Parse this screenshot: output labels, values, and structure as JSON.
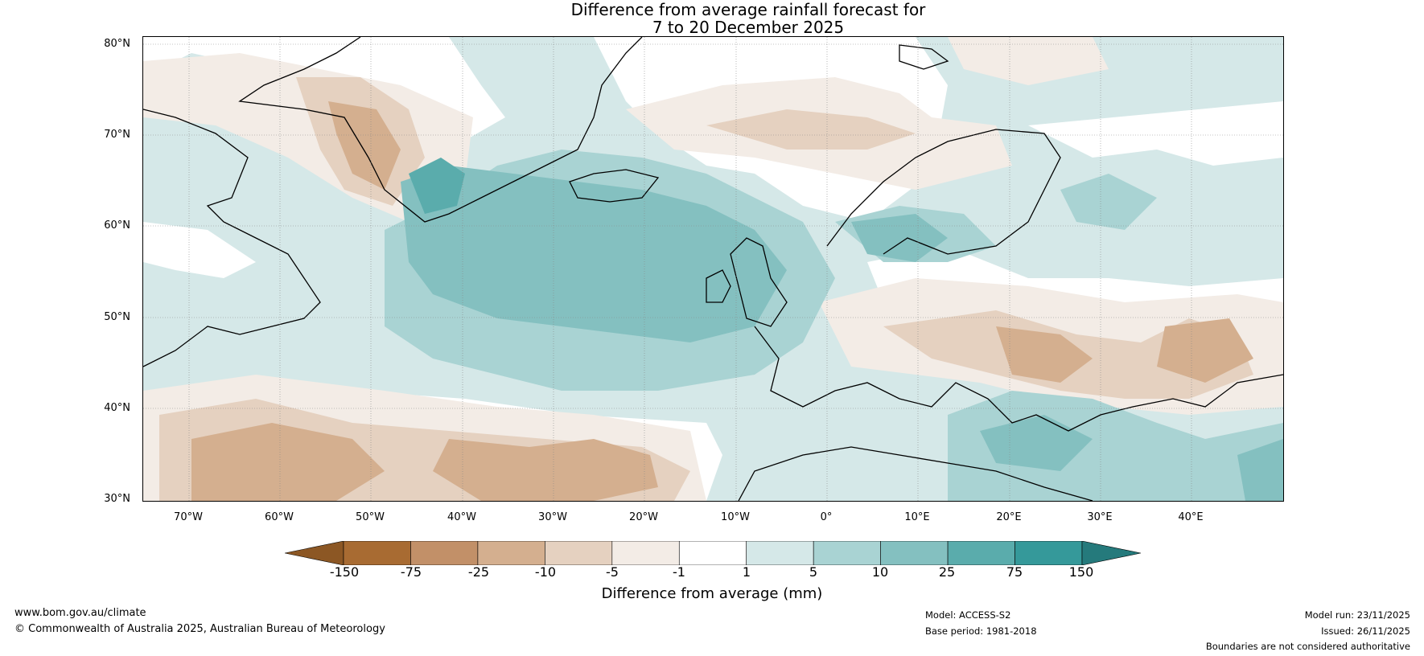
{
  "title": {
    "line1": "Difference from average rainfall forecast for",
    "line2": "7 to 20 December 2025"
  },
  "map": {
    "lat_labels": [
      "80°N",
      "70°N",
      "60°N",
      "50°N",
      "40°N",
      "30°N"
    ],
    "lon_labels": [
      "70°W",
      "60°W",
      "50°W",
      "40°W",
      "30°W",
      "20°W",
      "10°W",
      "0°",
      "10°E",
      "20°E",
      "30°E",
      "40°E"
    ]
  },
  "legend": {
    "ticks": [
      "-150",
      "-75",
      "-25",
      "-10",
      "-5",
      "-1",
      "1",
      "5",
      "10",
      "25",
      "75",
      "150"
    ],
    "colors": [
      "#a86b32",
      "#c29068",
      "#d4af8f",
      "#e5d1c0",
      "#f3ece6",
      "#ffffff",
      "#d5e8e8",
      "#a9d3d3",
      "#84c0c0",
      "#5aacac",
      "#35999a"
    ],
    "extend_low_color": "#8c5724",
    "extend_high_color": "#257a7c",
    "label": "Difference from average (mm)"
  },
  "footer": {
    "website": "www.bom.gov.au/climate",
    "copyright": "© Commonwealth of Australia 2025, Australian Bureau of Meteorology",
    "model": "Model: ACCESS-S2",
    "base_period": "Base period: 1981-2018",
    "model_run": "Model run: 23/11/2025",
    "issued": "Issued: 26/11/2025",
    "disclaimer": "Boundaries are not considered authoritative"
  },
  "colors": {
    "land_outline": "#000000",
    "border_gray": "#777777",
    "dry_strong": "#c29068",
    "dry_medium": "#d4af8f",
    "dry_light": "#e5d1c0",
    "dry_faint": "#f3ece6",
    "wet_faint": "#d5e8e8",
    "wet_light": "#a9d3d3",
    "wet_medium": "#84c0c0",
    "wet_strong": "#5aacac"
  }
}
